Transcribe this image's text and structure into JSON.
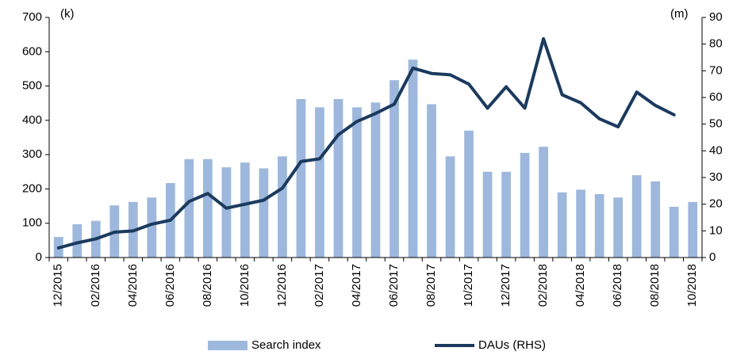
{
  "chart_data": {
    "type": "bar_line",
    "y_label": "(k)",
    "y2_label": "(m)",
    "categories": [
      "12/2015",
      null,
      "02/2016",
      null,
      "04/2016",
      null,
      "06/2016",
      null,
      "08/2016",
      null,
      "10/2016",
      null,
      "12/2016",
      null,
      "02/2017",
      null,
      "04/2017",
      null,
      "06/2017",
      null,
      "08/2017",
      null,
      "10/2017",
      null,
      "12/2017",
      null,
      "02/2018",
      null,
      "04/2018",
      null,
      "06/2018",
      null,
      "08/2018",
      null,
      "10/2018"
    ],
    "series": [
      {
        "name": "Search index",
        "type": "bar",
        "color": "#9db8dc",
        "values": [
          60,
          97,
          107,
          152,
          162,
          175,
          217,
          287,
          287,
          263,
          277,
          260,
          295,
          462,
          438,
          462,
          438,
          452,
          517,
          577,
          447,
          295,
          370,
          250,
          250,
          305,
          323,
          190,
          198,
          185,
          175,
          240,
          222,
          148,
          162
        ]
      },
      {
        "name": "DAUs (RHS)",
        "type": "line",
        "axis": "y2",
        "color": "#1b3a5e",
        "values": [
          3.6,
          5.5,
          7,
          9.5,
          10,
          12.5,
          14,
          21,
          24,
          18.5,
          20,
          21.5,
          26,
          36,
          37,
          46,
          51,
          54,
          57.5,
          71,
          69,
          68.5,
          65,
          56,
          64,
          56,
          82,
          61,
          58,
          52,
          49,
          62,
          57,
          53.5,
          null
        ]
      }
    ],
    "ylim": [
      0,
      700
    ],
    "yticks": [
      0,
      100,
      200,
      300,
      400,
      500,
      600,
      700
    ],
    "y2lim": [
      0,
      90
    ],
    "y2ticks": [
      0,
      10,
      20,
      30,
      40,
      50,
      60,
      70,
      80,
      90
    ]
  }
}
